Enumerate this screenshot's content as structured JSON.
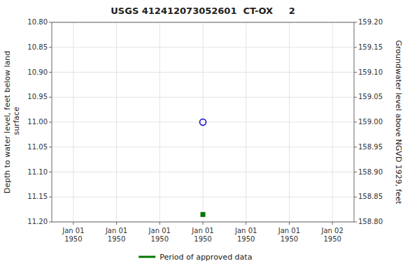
{
  "chart_data": {
    "type": "scatter",
    "title": "USGS 412412073052601  CT-OX     2",
    "ylabel": "Depth to water level, feet below land\n surface",
    "y2label": "Groundwater level above NGVD 1929, feet",
    "categories": [
      "Jan 01\n1950",
      "Jan 01\n1950",
      "Jan 01\n1950",
      "Jan 01\n1950",
      "Jan 01\n1950",
      "Jan 01\n1950",
      "Jan 02\n1950"
    ],
    "ylim": [
      11.2,
      10.8
    ],
    "yticks": [
      {
        "value": 10.8,
        "label": "10.80"
      },
      {
        "value": 10.85,
        "label": "10.85"
      },
      {
        "value": 10.9,
        "label": "10.90"
      },
      {
        "value": 10.95,
        "label": "10.95"
      },
      {
        "value": 11.0,
        "label": "11.00"
      },
      {
        "value": 11.05,
        "label": "11.05"
      },
      {
        "value": 11.1,
        "label": "11.10"
      },
      {
        "value": 11.15,
        "label": "11.15"
      },
      {
        "value": 11.2,
        "label": "11.20"
      }
    ],
    "y2lim": [
      158.8,
      159.2
    ],
    "y2ticks": [
      {
        "value": 158.8,
        "label": "158.80"
      },
      {
        "value": 158.85,
        "label": "158.85"
      },
      {
        "value": 158.9,
        "label": "158.90"
      },
      {
        "value": 158.95,
        "label": "158.95"
      },
      {
        "value": 159.0,
        "label": "159.00"
      },
      {
        "value": 159.05,
        "label": "159.05"
      },
      {
        "value": 159.1,
        "label": "159.10"
      },
      {
        "value": 159.15,
        "label": "159.15"
      },
      {
        "value": 159.2,
        "label": "159.20"
      }
    ],
    "series": [
      {
        "color": "#0000cc",
        "marker": "open-circle",
        "values": [
          null,
          null,
          null,
          11.0,
          null,
          null,
          null
        ]
      },
      {
        "name": "Period of approved data",
        "color": "#007700",
        "marker": "square",
        "values": [
          null,
          null,
          null,
          11.185,
          null,
          null,
          null
        ]
      }
    ],
    "grid": true,
    "legend": "bottom"
  }
}
